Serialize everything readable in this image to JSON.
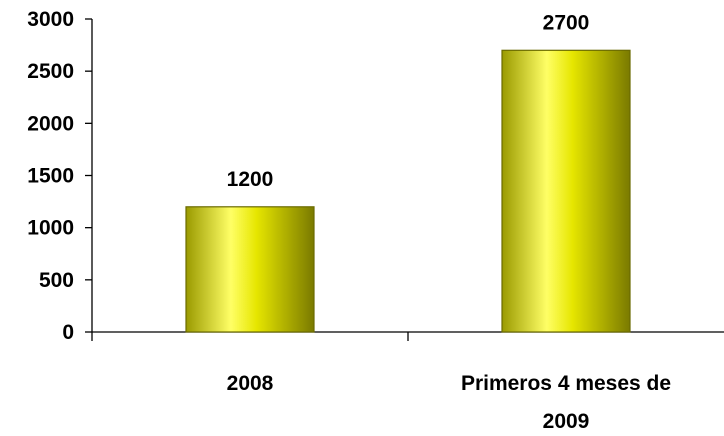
{
  "chart_data": {
    "type": "bar",
    "categories": [
      "2008",
      "Primeros 4 meses de 2009"
    ],
    "category_label_lines": [
      [
        "2008"
      ],
      [
        "Primeros 4 meses de",
        "2009"
      ]
    ],
    "values": [
      1200,
      2700
    ],
    "data_labels": [
      "1200",
      "2700"
    ],
    "title": "",
    "xlabel": "",
    "ylabel": "",
    "ylim": [
      0,
      3000
    ],
    "yticks": [
      0,
      500,
      1000,
      1500,
      2000,
      2500,
      3000
    ],
    "ytick_labels": [
      "0",
      "500",
      "1000",
      "1500",
      "2000",
      "2500",
      "3000"
    ],
    "grid": false,
    "legend": "none",
    "bar_colors": {
      "edge": "#6b6b00",
      "dark": "#9a9a00",
      "mid": "#e6e600",
      "light": "#ffff66",
      "shadow": "#7a7a00"
    }
  }
}
